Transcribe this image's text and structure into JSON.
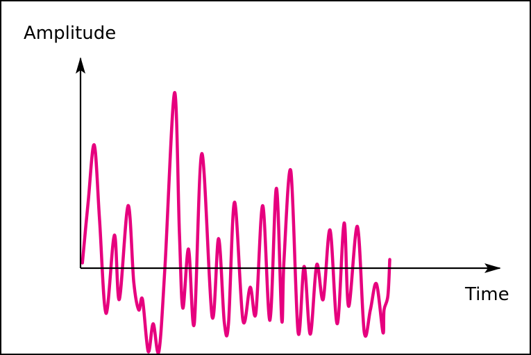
{
  "chart_data": {
    "type": "line",
    "title": "",
    "xlabel": "Time",
    "ylabel": "Amplitude",
    "grid": false,
    "legend": "none",
    "axis_ticks": false,
    "xlim": [
      0,
      100
    ],
    "ylim": [
      -100,
      100
    ],
    "series": [
      {
        "color": "#E6007E",
        "points": [
          [
            0.5,
            3
          ],
          [
            2,
            38
          ],
          [
            3.6,
            71
          ],
          [
            5,
            28
          ],
          [
            6.7,
            -26
          ],
          [
            8.9,
            19
          ],
          [
            10.2,
            -18
          ],
          [
            12.5,
            36
          ],
          [
            14,
            -8
          ],
          [
            15.3,
            -24
          ],
          [
            16.3,
            -18
          ],
          [
            17.8,
            -48
          ],
          [
            19.1,
            -32
          ],
          [
            20.6,
            -48
          ],
          [
            22.2,
            1
          ],
          [
            24.7,
            101
          ],
          [
            26,
            20
          ],
          [
            26.9,
            -23
          ],
          [
            28.4,
            11
          ],
          [
            29.9,
            -32
          ],
          [
            31.9,
            66
          ],
          [
            34.6,
            -28
          ],
          [
            36.3,
            17
          ],
          [
            37.8,
            -31
          ],
          [
            38.9,
            -32
          ],
          [
            40.5,
            38
          ],
          [
            42.7,
            -30
          ],
          [
            44.6,
            -11
          ],
          [
            46.1,
            -26
          ],
          [
            47.9,
            36
          ],
          [
            49.8,
            -30
          ],
          [
            51.5,
            46
          ],
          [
            52.9,
            -30
          ],
          [
            53.5,
            5
          ],
          [
            55.3,
            56
          ],
          [
            57.2,
            -37
          ],
          [
            58.8,
            1
          ],
          [
            60.4,
            -38
          ],
          [
            62.1,
            2
          ],
          [
            63.8,
            -18
          ],
          [
            65.6,
            22
          ],
          [
            67.5,
            -32
          ],
          [
            69.3,
            26
          ],
          [
            70.5,
            -22
          ],
          [
            72.8,
            24
          ],
          [
            74.6,
            -37
          ],
          [
            76.2,
            -24
          ],
          [
            77.8,
            -9
          ],
          [
            79.5,
            -37
          ],
          [
            79.8,
            -24
          ],
          [
            80.8,
            -16
          ],
          [
            81.3,
            5
          ]
        ]
      }
    ]
  }
}
